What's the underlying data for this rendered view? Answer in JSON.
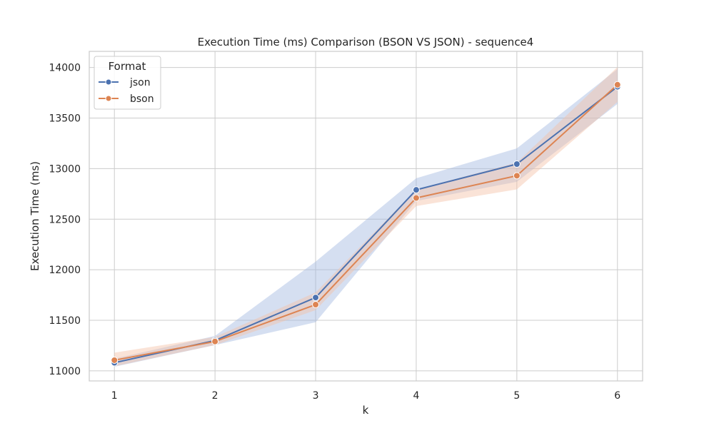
{
  "chart_data": {
    "type": "line",
    "title": "Execution Time (ms) Comparison (BSON VS JSON) - sequence4",
    "xlabel": "k",
    "ylabel": "Execution Time (ms)",
    "x": [
      1,
      2,
      3,
      4,
      5,
      6
    ],
    "x_ticks": [
      1,
      2,
      3,
      4,
      5,
      6
    ],
    "xlim": [
      0.75,
      6.25
    ],
    "y_ticks": [
      11000,
      11500,
      12000,
      12500,
      13000,
      13500,
      14000
    ],
    "ylim": [
      10900,
      14160
    ],
    "grid": true,
    "legend": {
      "title": "Format",
      "placement": "top-left"
    },
    "series": [
      {
        "name": "json",
        "color": "#4c72b0",
        "band_color": "#a1b7e0",
        "values": [
          11080,
          11300,
          11725,
          12790,
          13045,
          13810
        ],
        "ci_lower": [
          11040,
          11255,
          11480,
          12680,
          12870,
          13640
        ],
        "ci_upper": [
          11120,
          11345,
          12080,
          12905,
          13200,
          13985
        ]
      },
      {
        "name": "bson",
        "color": "#dd8452",
        "band_color": "#f4c2a7",
        "values": [
          11105,
          11290,
          11655,
          12710,
          12930,
          13830
        ],
        "ci_lower": [
          11045,
          11255,
          11600,
          12630,
          12795,
          13660
        ],
        "ci_upper": [
          11180,
          11335,
          11775,
          12795,
          13060,
          14005
        ]
      }
    ]
  }
}
